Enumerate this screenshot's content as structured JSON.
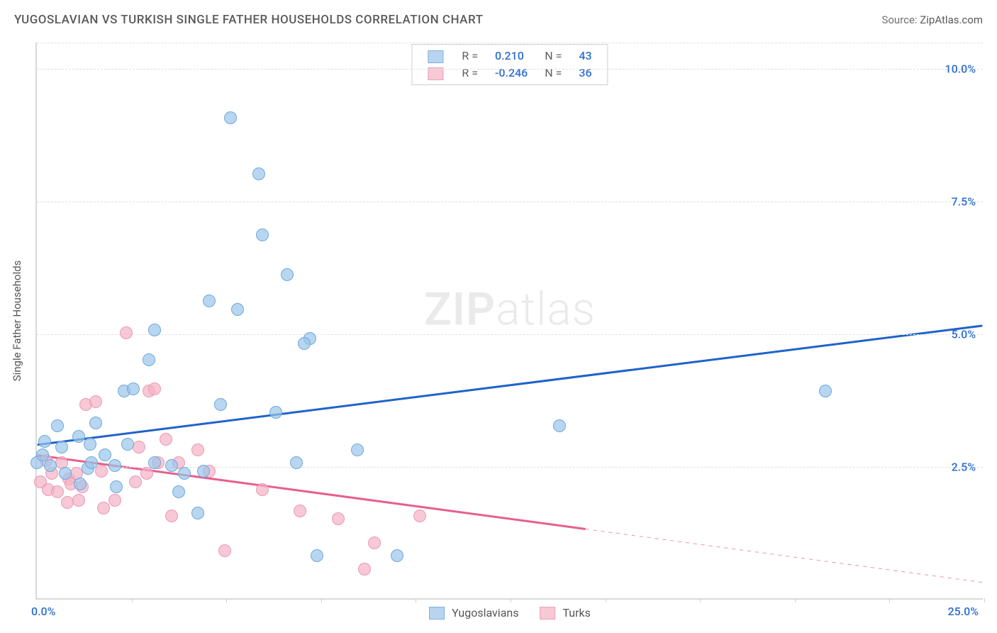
{
  "header": {
    "title": "YUGOSLAVIAN VS TURKISH SINGLE FATHER HOUSEHOLDS CORRELATION CHART",
    "source_prefix": "Source: ",
    "source_name": "ZipAtlas.com"
  },
  "watermark": {
    "zip": "ZIP",
    "atlas": "atlas"
  },
  "axes": {
    "y_label": "Single Father Households",
    "x_min": 0.0,
    "x_max": 25.0,
    "y_min": 0.0,
    "y_max": 10.5,
    "x_origin_label": "0.0%",
    "x_max_label": "25.0%",
    "x_label_color": "#2f6fd0",
    "y_ticks": [
      {
        "v": 2.5,
        "label": "2.5%"
      },
      {
        "v": 5.0,
        "label": "5.0%"
      },
      {
        "v": 7.5,
        "label": "7.5%"
      },
      {
        "v": 10.0,
        "label": "10.0%"
      }
    ],
    "x_tick_positions": [
      2.5,
      5.0,
      7.5,
      10.0,
      12.5,
      15.0,
      17.5,
      20.0,
      22.5,
      25.0
    ],
    "y_tick_color": "#2f6fd0",
    "grid_color": "#e0e0e0"
  },
  "legend_top": {
    "rows": [
      {
        "swatch_fill": "#b9d4ef",
        "swatch_border": "#7fb0e0",
        "r_label": "R =",
        "r_value": "0.210",
        "r_color": "#2f6fd0",
        "n_label": "N =",
        "n_value": "43",
        "n_color": "#2f6fd0"
      },
      {
        "swatch_fill": "#f6c9d5",
        "swatch_border": "#eaa0b6",
        "r_label": "R =",
        "r_value": "-0.246",
        "r_color": "#2f6fd0",
        "n_label": "N =",
        "n_value": "36",
        "n_color": "#2f6fd0"
      }
    ]
  },
  "legend_bottom": {
    "items": [
      {
        "swatch_fill": "#b9d4ef",
        "swatch_border": "#7fb0e0",
        "label": "Yugoslavians"
      },
      {
        "swatch_fill": "#f6c9d5",
        "swatch_border": "#eaa0b6",
        "label": "Turks"
      }
    ]
  },
  "series": [
    {
      "name": "Yugoslavians",
      "marker_fill": "rgba(154,197,234,0.70)",
      "marker_border": "#6fa8dc",
      "marker_radius_px": 9,
      "trend": {
        "color": "#1f63c9",
        "width": 3,
        "x1": 0.0,
        "y1": 2.9,
        "x2": 25.0,
        "y2": 5.15,
        "dash_from_x": null
      },
      "points": [
        [
          0.0,
          2.55
        ],
        [
          0.15,
          2.7
        ],
        [
          0.2,
          2.95
        ],
        [
          0.35,
          2.5
        ],
        [
          0.55,
          3.25
        ],
        [
          0.65,
          2.85
        ],
        [
          0.75,
          2.35
        ],
        [
          1.15,
          2.15
        ],
        [
          1.1,
          3.05
        ],
        [
          1.4,
          2.9
        ],
        [
          1.35,
          2.45
        ],
        [
          1.55,
          3.3
        ],
        [
          1.45,
          2.55
        ],
        [
          1.8,
          2.7
        ],
        [
          2.1,
          2.1
        ],
        [
          2.05,
          2.5
        ],
        [
          2.3,
          3.9
        ],
        [
          2.4,
          2.9
        ],
        [
          2.55,
          3.95
        ],
        [
          2.95,
          4.5
        ],
        [
          3.1,
          2.55
        ],
        [
          3.1,
          5.05
        ],
        [
          3.55,
          2.5
        ],
        [
          3.75,
          2.0
        ],
        [
          3.9,
          2.35
        ],
        [
          4.25,
          1.6
        ],
        [
          4.4,
          2.4
        ],
        [
          4.55,
          5.6
        ],
        [
          4.85,
          3.65
        ],
        [
          5.3,
          5.45
        ],
        [
          5.1,
          9.05
        ],
        [
          5.85,
          8.0
        ],
        [
          5.95,
          6.85
        ],
        [
          6.6,
          6.1
        ],
        [
          6.3,
          3.5
        ],
        [
          6.85,
          2.55
        ],
        [
          7.2,
          4.9
        ],
        [
          7.05,
          4.8
        ],
        [
          7.4,
          0.8
        ],
        [
          8.45,
          2.8
        ],
        [
          9.5,
          0.8
        ],
        [
          13.8,
          3.25
        ],
        [
          20.8,
          3.9
        ]
      ]
    },
    {
      "name": "Turks",
      "marker_fill": "rgba(244,176,196,0.70)",
      "marker_border": "#e99ab3",
      "marker_radius_px": 9,
      "trend": {
        "color": "#e75f8b",
        "width": 3,
        "x1": 0.0,
        "y1": 2.7,
        "x2": 25.0,
        "y2": 0.3,
        "dash_from_x": 14.5
      },
      "points": [
        [
          0.1,
          2.2
        ],
        [
          0.25,
          2.6
        ],
        [
          0.3,
          2.05
        ],
        [
          0.4,
          2.35
        ],
        [
          0.55,
          2.0
        ],
        [
          0.65,
          2.55
        ],
        [
          0.8,
          1.8
        ],
        [
          0.85,
          2.25
        ],
        [
          0.9,
          2.15
        ],
        [
          1.05,
          2.35
        ],
        [
          1.1,
          1.85
        ],
        [
          1.2,
          2.1
        ],
        [
          1.3,
          3.65
        ],
        [
          1.55,
          3.7
        ],
        [
          1.75,
          1.7
        ],
        [
          1.7,
          2.4
        ],
        [
          2.05,
          1.85
        ],
        [
          2.35,
          5.0
        ],
        [
          2.6,
          2.2
        ],
        [
          2.7,
          2.85
        ],
        [
          2.9,
          2.35
        ],
        [
          2.95,
          3.9
        ],
        [
          3.1,
          3.95
        ],
        [
          3.4,
          3.0
        ],
        [
          3.2,
          2.55
        ],
        [
          3.55,
          1.55
        ],
        [
          3.75,
          2.55
        ],
        [
          4.25,
          2.8
        ],
        [
          4.55,
          2.4
        ],
        [
          4.95,
          0.9
        ],
        [
          5.95,
          2.05
        ],
        [
          6.95,
          1.65
        ],
        [
          7.95,
          1.5
        ],
        [
          8.65,
          0.55
        ],
        [
          8.9,
          1.05
        ],
        [
          10.1,
          1.55
        ]
      ]
    }
  ]
}
